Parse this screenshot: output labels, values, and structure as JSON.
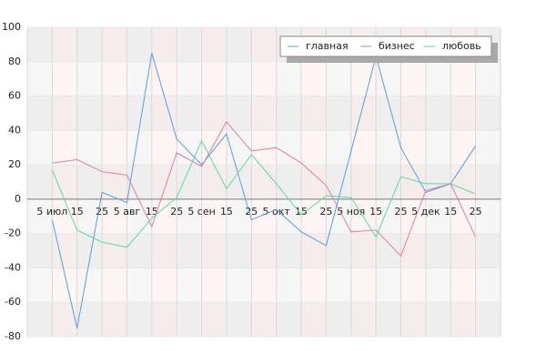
{
  "chart_data": {
    "type": "line",
    "categories": [
      "5 июл",
      "15",
      "25",
      "5 авг",
      "15",
      "25",
      "5 сен",
      "15",
      "25",
      "5 окт",
      "15",
      "25",
      "5 ноя",
      "15",
      "25",
      "5 дек",
      "15",
      "25"
    ],
    "series": [
      {
        "name": "главная",
        "color": "#5b9be0",
        "values": [
          -12,
          -75,
          4,
          -2,
          85,
          35,
          20,
          38,
          -12,
          -6,
          -19,
          -27,
          28,
          83,
          30,
          4,
          9,
          31
        ]
      },
      {
        "name": "бизнес",
        "color": "#e07aa8",
        "values": [
          21,
          23,
          16,
          14,
          -16,
          27,
          19,
          45,
          28,
          30,
          21,
          8,
          -19,
          -18,
          -33,
          5,
          9,
          -22
        ]
      },
      {
        "name": "любовь",
        "color": "#5fd6a4",
        "values": [
          17,
          -18,
          -25,
          -28,
          -11,
          1,
          34,
          6,
          26,
          9,
          -9,
          2,
          1,
          -22,
          13,
          9,
          9,
          3
        ]
      }
    ],
    "ylim": [
      -80,
      100
    ],
    "yticks": [
      -80,
      -60,
      -40,
      -20,
      0,
      20,
      40,
      60,
      80,
      100
    ],
    "grid": true,
    "legend": "top-right"
  }
}
